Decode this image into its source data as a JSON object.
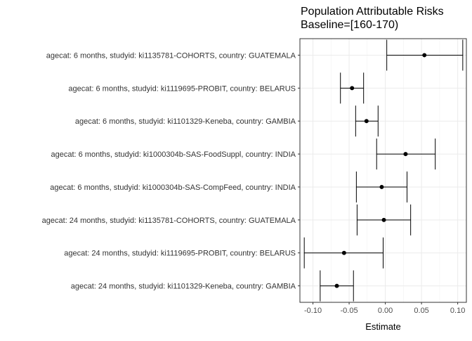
{
  "chart_data": {
    "type": "forest",
    "title": "Population Attributable Risks",
    "subtitle": "Baseline=[160-170)",
    "xlabel": "Estimate",
    "ylabel": "",
    "xlim": [
      -0.118,
      0.112
    ],
    "xticks": [
      -0.1,
      -0.05,
      0.0,
      0.05,
      0.1
    ],
    "xtick_labels": [
      "-0.10",
      "-0.05",
      "0.00",
      "0.05",
      "0.10"
    ],
    "grid": true,
    "legend": "none",
    "point_color": "#000000",
    "rows": [
      {
        "label": "agecat: 6 months, studyid: ki1135781-COHORTS, country: GUATEMALA",
        "estimate": 0.054,
        "lower": 0.002,
        "upper": 0.107
      },
      {
        "label": "agecat: 6 months, studyid: ki1119695-PROBIT, country: BELARUS",
        "estimate": -0.046,
        "lower": -0.062,
        "upper": -0.03
      },
      {
        "label": "agecat: 6 months, studyid: ki1101329-Keneba, country: GAMBIA",
        "estimate": -0.026,
        "lower": -0.041,
        "upper": -0.01
      },
      {
        "label": "agecat: 6 months, studyid: ki1000304b-SAS-FoodSuppl, country: INDIA",
        "estimate": 0.028,
        "lower": -0.012,
        "upper": 0.069
      },
      {
        "label": "agecat: 6 months, studyid: ki1000304b-SAS-CompFeed, country: INDIA",
        "estimate": -0.005,
        "lower": -0.04,
        "upper": 0.03
      },
      {
        "label": "agecat: 24 months, studyid: ki1135781-COHORTS, country: GUATEMALA",
        "estimate": -0.002,
        "lower": -0.039,
        "upper": 0.035
      },
      {
        "label": "agecat: 24 months, studyid: ki1119695-PROBIT, country: BELARUS",
        "estimate": -0.057,
        "lower": -0.112,
        "upper": -0.003
      },
      {
        "label": "agecat: 24 months, studyid: ki1101329-Keneba, country: GAMBIA",
        "estimate": -0.067,
        "lower": -0.09,
        "upper": -0.044
      }
    ]
  }
}
